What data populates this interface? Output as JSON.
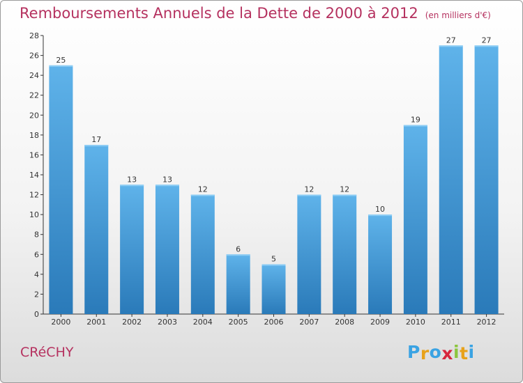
{
  "header": {
    "title": "Remboursements Annuels de la Dette de 2000 à 2012",
    "subtitle": "(en milliers d'€)"
  },
  "footer": {
    "place": "CRéCHY",
    "logo_letters": [
      "P",
      "r",
      "o",
      "x",
      "i",
      "t",
      "i"
    ],
    "logo_colors": [
      "#3aa3e3",
      "#e8a21a",
      "#3aa3e3",
      "#d7263d",
      "#8dc63f",
      "#e8a21a",
      "#3aa3e3"
    ]
  },
  "colors": {
    "bar_top": "#5fb3ea",
    "bar_bottom": "#2a7ab9",
    "axis": "#333333",
    "grid": "#d0d0d0",
    "title": "#b5315f"
  },
  "chart_data": {
    "type": "bar",
    "title": "Remboursements Annuels de la Dette de 2000 à 2012",
    "subtitle": "(en milliers d'€)",
    "xlabel": "",
    "ylabel": "",
    "categories": [
      "2000",
      "2001",
      "2002",
      "2003",
      "2004",
      "2005",
      "2006",
      "2007",
      "2008",
      "2009",
      "2010",
      "2011",
      "2012"
    ],
    "values": [
      25,
      17,
      13,
      13,
      12,
      6,
      5,
      12,
      12,
      10,
      19,
      27,
      27
    ],
    "ylim": [
      0,
      28
    ],
    "yticks": [
      0,
      2,
      4,
      6,
      8,
      10,
      12,
      14,
      16,
      18,
      20,
      22,
      24,
      26,
      28
    ],
    "grid": false,
    "legend": "none"
  }
}
